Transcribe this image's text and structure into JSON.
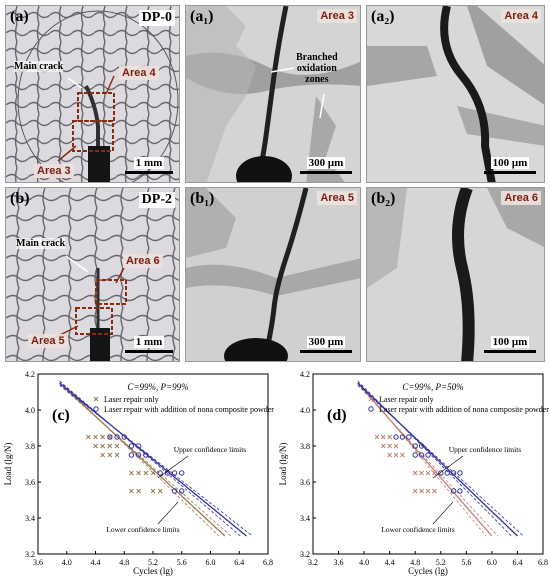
{
  "micrographs": [
    {
      "id": "a",
      "label": "(a)",
      "tag": "DP-0",
      "scale": "1 mm",
      "notes": [
        "Main crack"
      ],
      "areas": [
        "Area 4",
        "Area 3"
      ]
    },
    {
      "id": "a1",
      "label": "(a₁)",
      "tag": "Area 3",
      "scale": "300 μm",
      "notes": [
        "Branched",
        "oxidation",
        "zones"
      ]
    },
    {
      "id": "a2",
      "label": "(a₂)",
      "tag": "Area 4",
      "scale": "100 μm"
    },
    {
      "id": "b",
      "label": "(b)",
      "tag": "DP-2",
      "scale": "1 mm",
      "notes": [
        "Main crack"
      ],
      "areas": [
        "Area 6",
        "Area 5"
      ]
    },
    {
      "id": "b1",
      "label": "(b₁)",
      "tag": "Area 5",
      "scale": "300 μm"
    },
    {
      "id": "b2",
      "label": "(b₂)",
      "tag": "Area 6",
      "scale": "100 μm"
    }
  ],
  "chart_data": [
    {
      "type": "scatter",
      "panel_label": "(c)",
      "annotation": "C=99%, P=99%",
      "xlabel": "Cycles (lg)",
      "ylabel": "Load (lg/N)",
      "xlim": [
        3.6,
        6.8
      ],
      "ylim": [
        3.2,
        4.2
      ],
      "xticks": [
        "3.6",
        "4.0",
        "4.4",
        "4.8",
        "5.2",
        "5.6",
        "6.0",
        "6.4",
        "6.8"
      ],
      "yticks": [
        "3.2",
        "3.4",
        "3.6",
        "3.8",
        "4.0",
        "4.2"
      ],
      "callouts": [
        "Upper confidence limits",
        "Lower confidence limits"
      ],
      "series": [
        {
          "name": "Laser repair only",
          "color": "#9a7a50",
          "points": [
            [
              4.3,
              3.85
            ],
            [
              4.4,
              3.85
            ],
            [
              4.5,
              3.85
            ],
            [
              4.6,
              3.85
            ],
            [
              4.4,
              3.8
            ],
            [
              4.5,
              3.8
            ],
            [
              4.6,
              3.8
            ],
            [
              4.7,
              3.8
            ],
            [
              4.5,
              3.75
            ],
            [
              4.6,
              3.75
            ],
            [
              4.7,
              3.75
            ],
            [
              4.9,
              3.65
            ],
            [
              5.0,
              3.65
            ],
            [
              5.1,
              3.65
            ],
            [
              5.2,
              3.65
            ],
            [
              4.9,
              3.55
            ],
            [
              5.0,
              3.55
            ],
            [
              5.2,
              3.55
            ],
            [
              5.3,
              3.55
            ]
          ],
          "fit": [
            [
              3.9,
              4.15
            ],
            [
              6.2,
              3.3
            ]
          ]
        },
        {
          "name": "Laser repair with addition of nona composite powder",
          "color": "#3030a0",
          "points": [
            [
              4.6,
              3.85
            ],
            [
              4.7,
              3.85
            ],
            [
              4.8,
              3.85
            ],
            [
              4.9,
              3.8
            ],
            [
              5.0,
              3.8
            ],
            [
              4.9,
              3.75
            ],
            [
              5.0,
              3.75
            ],
            [
              5.1,
              3.75
            ],
            [
              5.3,
              3.65
            ],
            [
              5.4,
              3.65
            ],
            [
              5.5,
              3.65
            ],
            [
              5.6,
              3.65
            ],
            [
              5.5,
              3.55
            ],
            [
              5.6,
              3.55
            ]
          ],
          "fit": [
            [
              3.9,
              4.15
            ],
            [
              6.5,
              3.3
            ]
          ]
        }
      ]
    },
    {
      "type": "scatter",
      "panel_label": "(d)",
      "annotation": "C=99%, P=50%",
      "xlabel": "Cycles (lg)",
      "ylabel": "Load (lg/N)",
      "xlim": [
        3.2,
        6.8
      ],
      "ylim": [
        3.2,
        4.2
      ],
      "xticks": [
        "3.2",
        "3.6",
        "4.0",
        "4.4",
        "4.8",
        "5.2",
        "5.6",
        "6.0",
        "6.4",
        "6.8"
      ],
      "yticks": [
        "3.2",
        "3.4",
        "3.6",
        "3.8",
        "4.0",
        "4.2"
      ],
      "callouts": [
        "Upper confidence limits",
        "Lower confidence limits"
      ],
      "series": [
        {
          "name": "Laser repair only",
          "color": "#c08070",
          "points": [
            [
              4.2,
              3.85
            ],
            [
              4.3,
              3.85
            ],
            [
              4.4,
              3.85
            ],
            [
              4.3,
              3.8
            ],
            [
              4.4,
              3.8
            ],
            [
              4.5,
              3.8
            ],
            [
              4.4,
              3.75
            ],
            [
              4.5,
              3.75
            ],
            [
              4.6,
              3.75
            ],
            [
              4.8,
              3.65
            ],
            [
              4.9,
              3.65
            ],
            [
              5.0,
              3.65
            ],
            [
              5.1,
              3.65
            ],
            [
              4.8,
              3.55
            ],
            [
              4.9,
              3.55
            ],
            [
              5.0,
              3.55
            ],
            [
              5.1,
              3.55
            ]
          ],
          "fit": [
            [
              3.9,
              4.15
            ],
            [
              6.0,
              3.3
            ]
          ]
        },
        {
          "name": "Laser repair with addition of nona composite powder",
          "color": "#3030a0",
          "points": [
            [
              4.5,
              3.85
            ],
            [
              4.6,
              3.85
            ],
            [
              4.7,
              3.85
            ],
            [
              4.8,
              3.8
            ],
            [
              4.9,
              3.8
            ],
            [
              4.8,
              3.75
            ],
            [
              4.9,
              3.75
            ],
            [
              5.0,
              3.75
            ],
            [
              5.2,
              3.65
            ],
            [
              5.3,
              3.65
            ],
            [
              5.4,
              3.65
            ],
            [
              5.5,
              3.65
            ],
            [
              5.4,
              3.55
            ],
            [
              5.5,
              3.55
            ]
          ],
          "fit": [
            [
              3.9,
              4.15
            ],
            [
              6.4,
              3.3
            ]
          ]
        }
      ]
    }
  ]
}
